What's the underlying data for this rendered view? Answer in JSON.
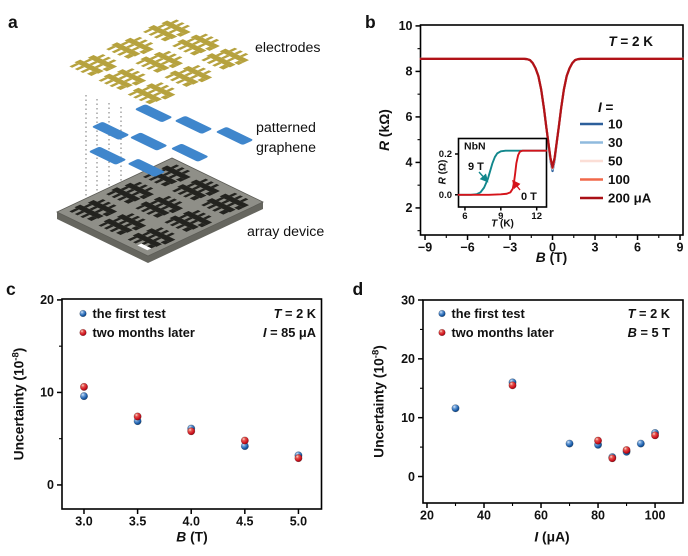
{
  "figure": {
    "panel_labels": {
      "a": "a",
      "b": "b",
      "c": "c",
      "d": "d"
    },
    "panel_a": {
      "labels": {
        "electrodes": "electrodes",
        "patterned_line1": "patterned",
        "patterned_line2": "graphene",
        "array_device": "array device"
      },
      "colors": {
        "electrodes": "#b6a23e",
        "graphene": "#3f86cc",
        "substrate": "#8f8f88",
        "substrate_pattern": "#23231f"
      }
    }
  },
  "chart_data": [
    {
      "id": "panel-b-main",
      "type": "line",
      "xlabel": {
        "var": "B",
        "rest": " (T)"
      },
      "ylabel": {
        "var": "R",
        "rest": " (kΩ)"
      },
      "xlim": [
        -9.32,
        9.21
      ],
      "ylim": [
        0.81,
        10.04
      ],
      "xticks": [
        [
          -9,
          "−9"
        ],
        [
          -6,
          "−6"
        ],
        [
          -3,
          "−3"
        ],
        [
          0,
          "0"
        ],
        [
          3,
          "3"
        ],
        [
          6,
          "6"
        ],
        [
          9,
          "9"
        ]
      ],
      "yticks": [
        [
          2,
          "2"
        ],
        [
          4,
          "4"
        ],
        [
          6,
          "6"
        ],
        [
          8,
          "8"
        ],
        [
          10,
          "10"
        ]
      ],
      "xminor": [
        -7.5,
        -4.5,
        -1.5,
        1.5,
        4.5,
        7.5
      ],
      "yminor": [
        1,
        3,
        5,
        7,
        9
      ],
      "annotation": {
        "var": "T",
        "rest": " = 2 K"
      },
      "legend_title": {
        "var": "I",
        "rest": " ="
      },
      "legend": [
        {
          "label": "10",
          "color": "#2d5f9b"
        },
        {
          "label": "30",
          "color": "#8fbadd"
        },
        {
          "label": "50",
          "color": "#fbded6"
        },
        {
          "label": "100",
          "color": "#f1684a"
        },
        {
          "label": "200 μA",
          "color": "#aa1016"
        }
      ],
      "x": [
        -9.3,
        -8,
        -6,
        -4,
        -3,
        -2.4,
        -2,
        -1.8,
        -1.6,
        -1.4,
        -1.2,
        -1,
        -0.8,
        -0.6,
        -0.45,
        -0.3,
        -0.15,
        0,
        0.15,
        0.3,
        0.45,
        0.6,
        0.8,
        1,
        1.2,
        1.4,
        1.6,
        1.8,
        2,
        2.4,
        3,
        4,
        6,
        8,
        9.2
      ],
      "series": [
        {
          "name": "I = 10 μA",
          "color": "#2d5f9b",
          "y": [
            8.55,
            8.55,
            8.55,
            8.55,
            8.55,
            8.55,
            8.55,
            8.54,
            8.5,
            8.37,
            8.14,
            7.8,
            7.2,
            6.35,
            5.6,
            4.9,
            4.1,
            3.62,
            4.1,
            4.9,
            5.6,
            6.35,
            7.2,
            7.8,
            8.14,
            8.37,
            8.5,
            8.54,
            8.55,
            8.55,
            8.55,
            8.55,
            8.55,
            8.55,
            8.55
          ]
        },
        {
          "name": "I = 30 μA",
          "color": "#8fbadd",
          "y": [
            8.55,
            8.55,
            8.55,
            8.55,
            8.55,
            8.55,
            8.55,
            8.54,
            8.5,
            8.37,
            8.14,
            7.8,
            7.2,
            6.35,
            5.6,
            4.9,
            4.15,
            3.7,
            4.15,
            4.9,
            5.6,
            6.35,
            7.2,
            7.8,
            8.14,
            8.37,
            8.5,
            8.54,
            8.55,
            8.55,
            8.55,
            8.55,
            8.55,
            8.55,
            8.55
          ]
        },
        {
          "name": "I = 50 μA",
          "color": "#fbded6",
          "y": [
            8.55,
            8.55,
            8.55,
            8.55,
            8.55,
            8.55,
            8.55,
            8.54,
            8.5,
            8.37,
            8.14,
            7.8,
            7.2,
            6.35,
            5.6,
            4.9,
            4.18,
            3.74,
            4.18,
            4.9,
            5.6,
            6.35,
            7.2,
            7.8,
            8.14,
            8.37,
            8.5,
            8.54,
            8.55,
            8.55,
            8.55,
            8.55,
            8.55,
            8.55,
            8.55
          ]
        },
        {
          "name": "I = 100 μA",
          "color": "#f1684a",
          "y": [
            8.55,
            8.55,
            8.55,
            8.55,
            8.55,
            8.55,
            8.55,
            8.54,
            8.5,
            8.37,
            8.14,
            7.8,
            7.2,
            6.35,
            5.6,
            4.9,
            4.2,
            3.76,
            4.2,
            4.9,
            5.6,
            6.35,
            7.2,
            7.8,
            8.14,
            8.37,
            8.5,
            8.54,
            8.55,
            8.55,
            8.55,
            8.55,
            8.55,
            8.55,
            8.55
          ]
        },
        {
          "name": "I = 200 μA",
          "color": "#b11218",
          "y": [
            8.55,
            8.55,
            8.55,
            8.55,
            8.55,
            8.55,
            8.55,
            8.54,
            8.5,
            8.37,
            8.14,
            7.8,
            7.2,
            6.35,
            5.6,
            4.9,
            4.22,
            3.78,
            4.22,
            4.9,
            5.6,
            6.35,
            7.2,
            7.8,
            8.14,
            8.37,
            8.5,
            8.54,
            8.55,
            8.55,
            8.55,
            8.55,
            8.55,
            8.55,
            8.55
          ]
        }
      ]
    },
    {
      "id": "panel-b-inset",
      "type": "line",
      "label": "NbN",
      "xlabel": {
        "var": "T",
        "rest": " (K)"
      },
      "ylabel": {
        "var": "R",
        "rest": " (Ω)"
      },
      "xlim": [
        5.46,
        12.82
      ],
      "ylim": [
        -0.06,
        0.276
      ],
      "xticks": [
        [
          6,
          "6"
        ],
        [
          9,
          "9"
        ],
        [
          12,
          "12"
        ]
      ],
      "yticks": [
        [
          0,
          "0.0"
        ],
        [
          0.2,
          "0.2"
        ]
      ],
      "annotations": [
        {
          "text": "9 T",
          "color": "#11878c"
        },
        {
          "text": "0 T",
          "color": "#d5131a"
        }
      ],
      "series": [
        {
          "name": "9 T",
          "color": "#11878c",
          "x": [
            5.46,
            6.5,
            7,
            7.3,
            7.6,
            7.9,
            8.1,
            8.3,
            8.5,
            8.7,
            9,
            9.4,
            10,
            11,
            12.8
          ],
          "y": [
            0,
            0,
            0.003,
            0.012,
            0.035,
            0.075,
            0.115,
            0.155,
            0.185,
            0.203,
            0.213,
            0.216,
            0.216,
            0.216,
            0.216
          ]
        },
        {
          "name": "0 T",
          "color": "#d5131a",
          "x": [
            5.46,
            8,
            9,
            9.5,
            9.8,
            10,
            10.1,
            10.2,
            10.3,
            10.45,
            10.6,
            10.8,
            11.2,
            12.8
          ],
          "y": [
            0,
            0,
            0.002,
            0.005,
            0.012,
            0.03,
            0.06,
            0.105,
            0.155,
            0.195,
            0.212,
            0.216,
            0.216,
            0.216
          ]
        }
      ]
    },
    {
      "id": "panel-c",
      "type": "scatter",
      "xlabel": {
        "var": "B",
        "rest": " (T)"
      },
      "ylabel": {
        "pre": "Uncertainty (10",
        "sup": "-8",
        "post": ")"
      },
      "xlim": [
        2.795,
        5.215
      ],
      "ylim": [
        -2.6,
        20.1
      ],
      "xticks": [
        [
          3,
          "3.0"
        ],
        [
          3.5,
          "3.5"
        ],
        [
          4,
          "4.0"
        ],
        [
          4.5,
          "4.5"
        ],
        [
          5,
          "5.0"
        ]
      ],
      "yticks": [
        [
          0,
          "0"
        ],
        [
          10,
          "10"
        ],
        [
          20,
          "20"
        ]
      ],
      "yminor": [
        5,
        15
      ],
      "annotations": [
        {
          "var": "T",
          "rest": " = 2 K"
        },
        {
          "var": "I",
          "rest": " = 85 μA"
        }
      ],
      "legend": [
        {
          "label": "the first test",
          "ball": "blue"
        },
        {
          "label": "two months later",
          "ball": "red"
        }
      ],
      "series": [
        {
          "name": "the first test",
          "ball": "blue",
          "color": "#1c5fad",
          "points": [
            [
              3.0,
              9.6
            ],
            [
              3.5,
              6.9
            ],
            [
              4.0,
              6.1
            ],
            [
              4.5,
              4.2
            ],
            [
              5.0,
              3.2
            ]
          ]
        },
        {
          "name": "two months later",
          "ball": "red",
          "color": "#d01320",
          "points": [
            [
              3.0,
              10.6
            ],
            [
              3.5,
              7.4
            ],
            [
              4.0,
              5.8
            ],
            [
              4.5,
              4.8
            ],
            [
              5.0,
              2.9
            ]
          ]
        }
      ]
    },
    {
      "id": "panel-d",
      "type": "scatter",
      "xlabel": {
        "var": "I",
        "rest": " (μA)"
      },
      "ylabel": {
        "pre": "Uncertainty (10",
        "sup": "-8",
        "post": ")"
      },
      "xlim": [
        18.6,
        109.8
      ],
      "ylim": [
        -4.5,
        30.0
      ],
      "xticks": [
        [
          20,
          "20"
        ],
        [
          40,
          "40"
        ],
        [
          60,
          "60"
        ],
        [
          80,
          "80"
        ],
        [
          100,
          "100"
        ]
      ],
      "yticks": [
        [
          0,
          "0"
        ],
        [
          10,
          "10"
        ],
        [
          20,
          "20"
        ],
        [
          30,
          "30"
        ]
      ],
      "xminor": [
        30,
        50,
        70,
        90
      ],
      "yminor": [
        5,
        15,
        25
      ],
      "annotations": [
        {
          "var": "T",
          "rest": " = 2 K"
        },
        {
          "var": "B",
          "rest": " = 5 T"
        }
      ],
      "legend": [
        {
          "label": "the first test",
          "ball": "blue"
        },
        {
          "label": "two months later",
          "ball": "red"
        }
      ],
      "series": [
        {
          "name": "the first test",
          "ball": "blue",
          "color": "#1c5fad",
          "points": [
            [
              30,
              11.6
            ],
            [
              50,
              16.0
            ],
            [
              70,
              5.6
            ],
            [
              80,
              5.4
            ],
            [
              85,
              3.3
            ],
            [
              90,
              4.2
            ],
            [
              95,
              5.6
            ],
            [
              100,
              7.4
            ]
          ]
        },
        {
          "name": "two months later",
          "ball": "red",
          "color": "#d01320",
          "points": [
            [
              50,
              15.5
            ],
            [
              80,
              6.1
            ],
            [
              85,
              3.1
            ],
            [
              90,
              4.5
            ],
            [
              100,
              7.0
            ]
          ]
        }
      ]
    }
  ]
}
